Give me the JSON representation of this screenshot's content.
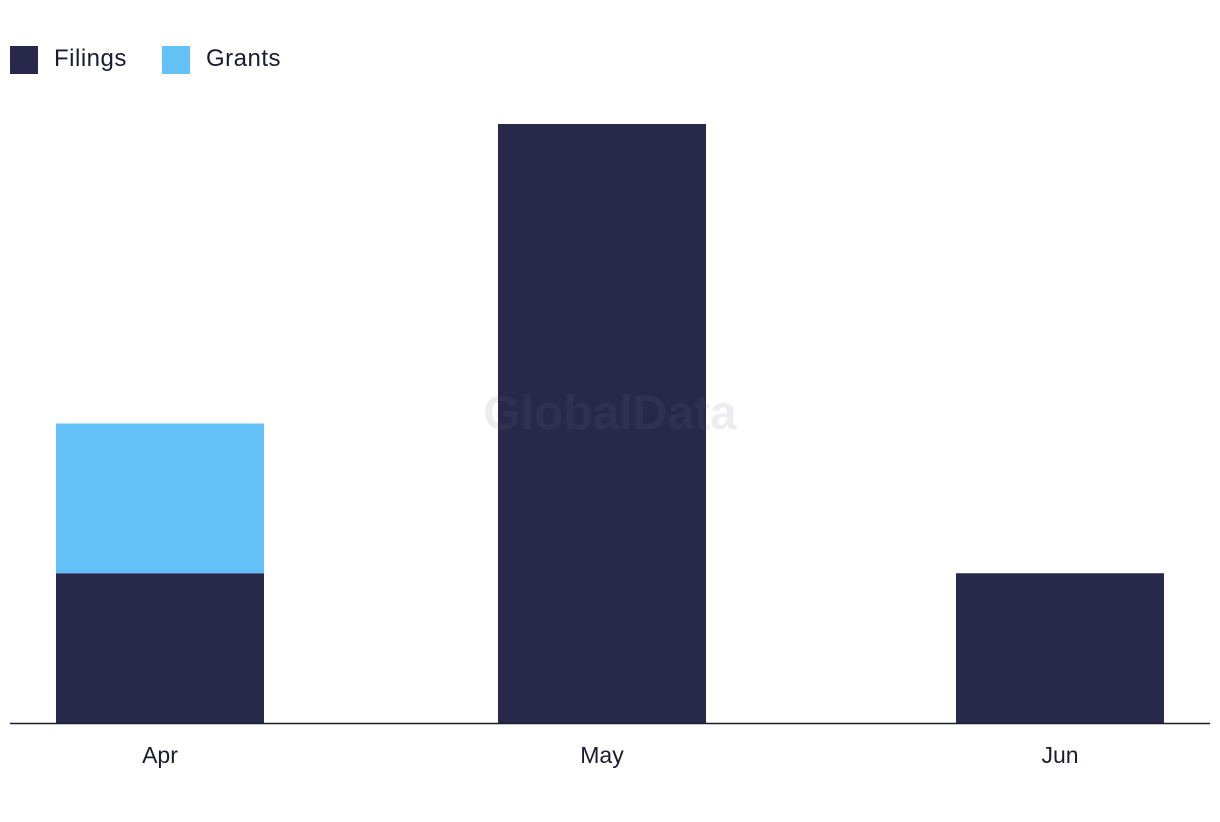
{
  "chart_data": {
    "type": "bar",
    "stacked": true,
    "categories": [
      "Apr",
      "May",
      "Jun"
    ],
    "series": [
      {
        "name": "Filings",
        "values": [
          1,
          4,
          1
        ],
        "color": "#28284a"
      },
      {
        "name": "Grants",
        "values": [
          1,
          0,
          0
        ],
        "color": "#63c1f8"
      }
    ],
    "ylim": [
      0,
      4
    ],
    "grid": false,
    "legend_position": "top-left",
    "watermark": "GlobalData"
  }
}
